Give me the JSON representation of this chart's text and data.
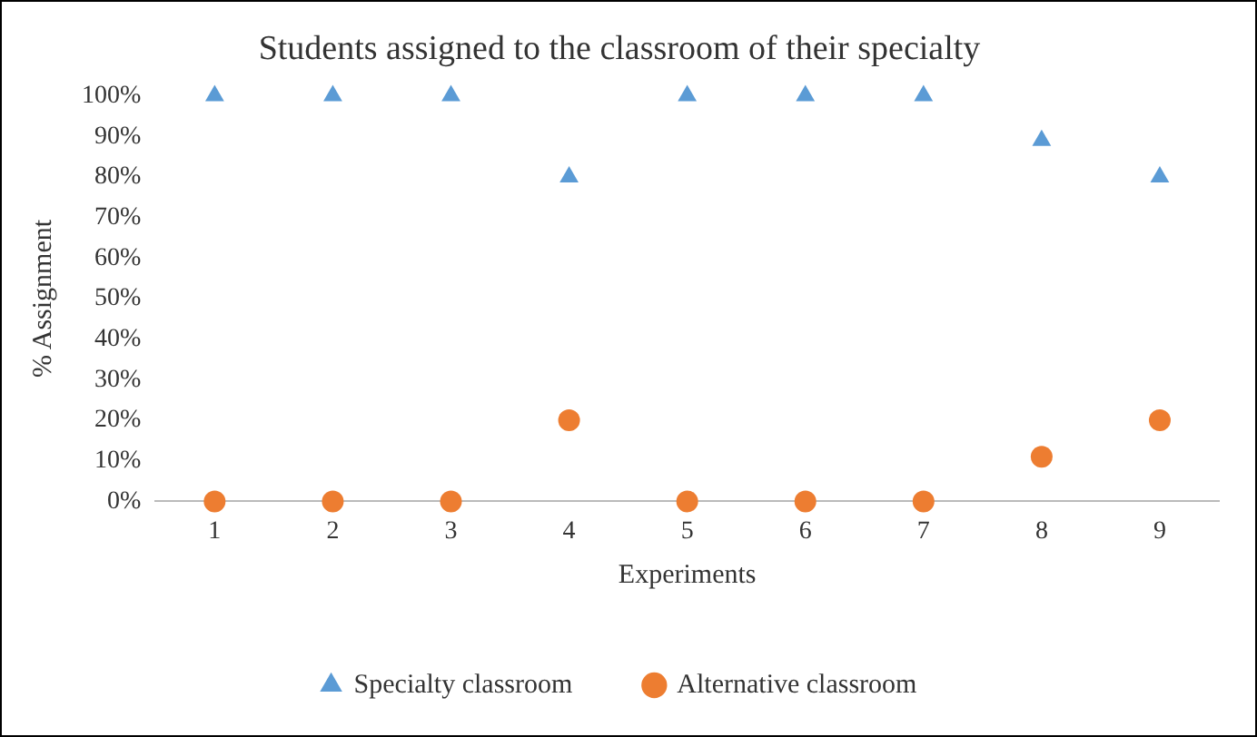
{
  "chart_data": {
    "type": "scatter",
    "title": "Students assigned to the classroom of their specialty",
    "xlabel": "Experiments",
    "ylabel": "% Assignment",
    "categories": [
      "1",
      "2",
      "3",
      "4",
      "5",
      "6",
      "7",
      "8",
      "9"
    ],
    "series": [
      {
        "name": "Specialty classroom",
        "color": "#5b9bd5",
        "marker": "triangle",
        "values": [
          100,
          100,
          100,
          80,
          100,
          100,
          100,
          89,
          80
        ]
      },
      {
        "name": "Alternative classroom",
        "color": "#ed7d31",
        "marker": "circle",
        "values": [
          0,
          0,
          0,
          20,
          0,
          0,
          0,
          11,
          20
        ]
      }
    ],
    "ylim": [
      0,
      100
    ],
    "yticks": [
      {
        "value": 0,
        "label": "0%"
      },
      {
        "value": 10,
        "label": "10%"
      },
      {
        "value": 20,
        "label": "20%"
      },
      {
        "value": 30,
        "label": "30%"
      },
      {
        "value": 40,
        "label": "40%"
      },
      {
        "value": 50,
        "label": "50%"
      },
      {
        "value": 60,
        "label": "60%"
      },
      {
        "value": 70,
        "label": "70%"
      },
      {
        "value": 80,
        "label": "80%"
      },
      {
        "value": 90,
        "label": "90%"
      },
      {
        "value": 100,
        "label": "100%"
      }
    ],
    "grid": false,
    "legend": "bottom"
  }
}
